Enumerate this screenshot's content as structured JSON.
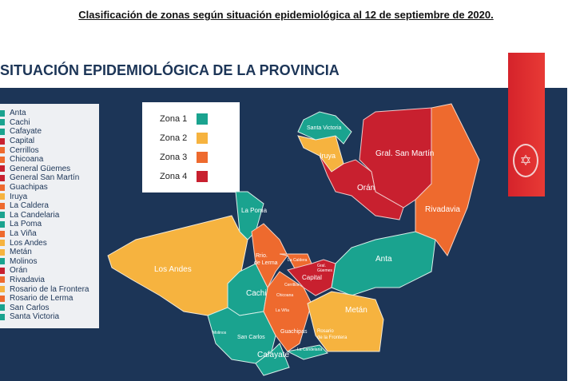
{
  "caption": "Clasificación de zonas según situación epidemiológica al 12 de septiembre de 2020.",
  "title": "SITUACIÓN EPIDEMIOLÓGICA DE LA PROVINCIA",
  "colors": {
    "zona1": "#1aa38f",
    "zona2": "#f6b33f",
    "zona3": "#ee6a2e",
    "zona4": "#c8202f",
    "background": "#1c3557",
    "ribbon": "#d5232b"
  },
  "zone_legend": [
    {
      "label": "Zona 1",
      "color": "#1aa38f"
    },
    {
      "label": "Zona 2",
      "color": "#f6b33f"
    },
    {
      "label": "Zona 3",
      "color": "#ee6a2e"
    },
    {
      "label": "Zona 4",
      "color": "#c8202f"
    }
  ],
  "departments": [
    {
      "name": "Anta",
      "zone": 1
    },
    {
      "name": "Cachi",
      "zone": 1
    },
    {
      "name": "Cafayate",
      "zone": 1
    },
    {
      "name": "Capital",
      "zone": 4
    },
    {
      "name": "Cerrillos",
      "zone": 3
    },
    {
      "name": "Chicoana",
      "zone": 3
    },
    {
      "name": "General Güemes",
      "zone": 4
    },
    {
      "name": "General San Martín",
      "zone": 4
    },
    {
      "name": "Guachipas",
      "zone": 3
    },
    {
      "name": "Iruya",
      "zone": 2
    },
    {
      "name": "La Caldera",
      "zone": 3
    },
    {
      "name": "La Candelaria",
      "zone": 1
    },
    {
      "name": "La Poma",
      "zone": 1
    },
    {
      "name": "La Viña",
      "zone": 3
    },
    {
      "name": "Los  Andes",
      "zone": 2
    },
    {
      "name": "Metán",
      "zone": 2
    },
    {
      "name": "Molinos",
      "zone": 1
    },
    {
      "name": "Orán",
      "zone": 4
    },
    {
      "name": "Rivadavia",
      "zone": 3
    },
    {
      "name": "Rosario de la Frontera",
      "zone": 2
    },
    {
      "name": "Rosario de Lerma",
      "zone": 3
    },
    {
      "name": "San Carlos",
      "zone": 1
    },
    {
      "name": "Santa Victoria",
      "zone": 1
    }
  ],
  "map_labels": {
    "santa_victoria": "Santa Victoria",
    "iruya": "Iruya",
    "gral_san_martin": "Gral. San Martín",
    "oran": "Orán",
    "rivadavia": "Rivadavia",
    "la_poma": "La Poma",
    "los_andes": "Los Andes",
    "rosario_lerma_1": "Rrio.",
    "rosario_lerma_2": "de Lerma",
    "la_caldera": "La Caldera",
    "guemes_1": "Gral.",
    "guemes_2": "Güemes",
    "capital": "Capital",
    "cerrillos": "Cerrillos",
    "anta": "Anta",
    "cachi": "Cachi",
    "chicoana": "Chicoana",
    "la_vina": "La Viña",
    "metan": "Metán",
    "molinos": "Molinos",
    "san_carlos": "San Carlos",
    "guachipas": "Guachipas",
    "rosario_frontera_1": "Rosario",
    "rosario_frontera_2": "de la Frontera",
    "cafayate": "Cafayate",
    "la_candelaria": "La Candelaria"
  }
}
